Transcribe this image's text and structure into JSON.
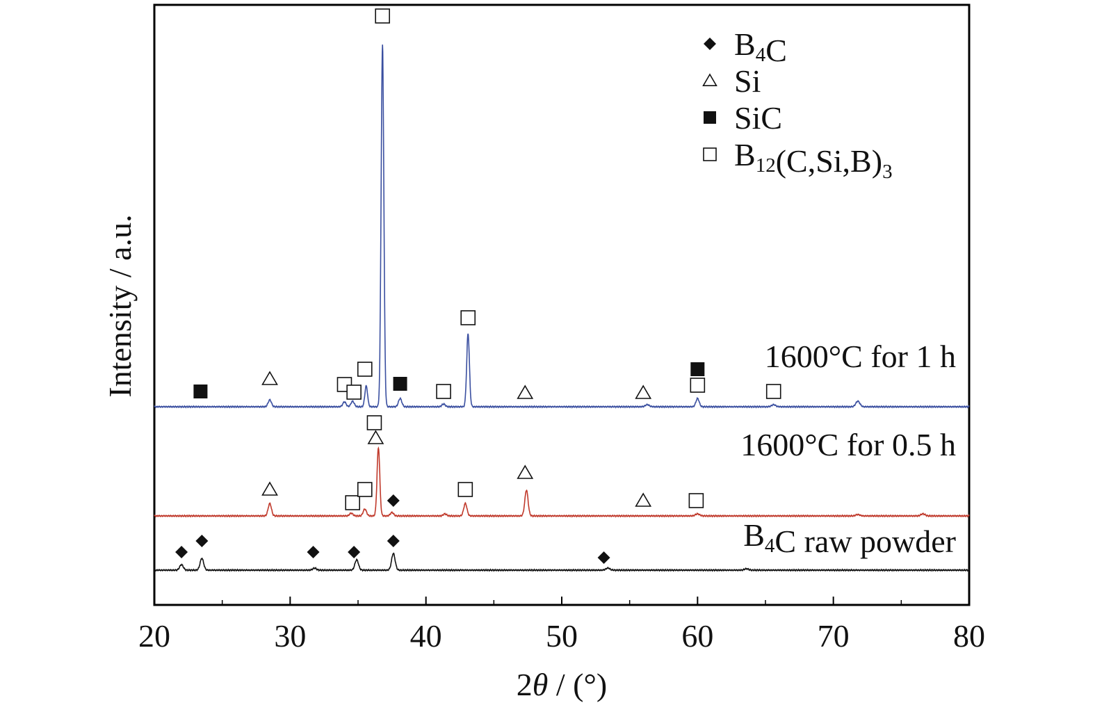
{
  "chart_data": {
    "type": "line",
    "xlabel_prefix": "2",
    "xlabel_var": "θ",
    "xlabel_suffix": " / (°)",
    "ylabel": "Intensity / a.u.",
    "xlim": [
      20,
      80
    ],
    "x_ticks": [
      "20",
      "30",
      "40",
      "50",
      "60",
      "70",
      "80"
    ],
    "y_ticks": [],
    "grid": false,
    "legend": {
      "placement": "top-right",
      "entries": [
        {
          "symbol": "diamond-filled",
          "name": "B₄C",
          "parts": [
            {
              "t": "B"
            },
            {
              "t": "4",
              "sub": true
            },
            {
              "t": "C"
            }
          ]
        },
        {
          "symbol": "triangle-open",
          "name": "Si",
          "parts": [
            {
              "t": "Si"
            }
          ]
        },
        {
          "symbol": "square-filled",
          "name": "SiC",
          "parts": [
            {
              "t": "SiC"
            }
          ]
        },
        {
          "symbol": "square-open",
          "name": "B₁₂(C,Si,B)₃",
          "parts": [
            {
              "t": "B"
            },
            {
              "t": "12",
              "sub": true
            },
            {
              "t": "(C,Si,B)"
            },
            {
              "t": "3",
              "sub": true
            }
          ]
        }
      ]
    },
    "series": [
      {
        "name": "1600°C for 1 h",
        "label_parts": [
          {
            "t": "1600°C for 1 h"
          }
        ],
        "color": "#3a4fa0",
        "offset": 235,
        "peaks": [
          {
            "x": 28.5,
            "h": 10,
            "w": 0.12
          },
          {
            "x": 34.0,
            "h": 7,
            "w": 0.12
          },
          {
            "x": 34.6,
            "h": 8,
            "w": 0.12
          },
          {
            "x": 35.6,
            "h": 30,
            "w": 0.1
          },
          {
            "x": 36.8,
            "h": 520,
            "w": 0.1
          },
          {
            "x": 38.1,
            "h": 12,
            "w": 0.12
          },
          {
            "x": 41.3,
            "h": 4,
            "w": 0.12
          },
          {
            "x": 43.1,
            "h": 105,
            "w": 0.1
          },
          {
            "x": 56.3,
            "h": 3,
            "w": 0.15
          },
          {
            "x": 60.0,
            "h": 12,
            "w": 0.12
          },
          {
            "x": 65.6,
            "h": 3,
            "w": 0.15
          },
          {
            "x": 71.8,
            "h": 8,
            "w": 0.15
          }
        ],
        "markers": [
          {
            "x": 23.4,
            "symbol": "square-filled",
            "h": 22
          },
          {
            "x": 28.5,
            "symbol": "triangle-open",
            "h": 40
          },
          {
            "x": 34.0,
            "symbol": "square-open",
            "h": 32
          },
          {
            "x": 34.7,
            "symbol": "square-open",
            "h": 21
          },
          {
            "x": 35.5,
            "symbol": "square-open",
            "h": 54
          },
          {
            "x": 36.8,
            "symbol": "square-open",
            "h": 562
          },
          {
            "x": 38.1,
            "symbol": "square-filled",
            "h": 33
          },
          {
            "x": 41.3,
            "symbol": "square-open",
            "h": 22
          },
          {
            "x": 43.1,
            "symbol": "square-open",
            "h": 128
          },
          {
            "x": 47.3,
            "symbol": "triangle-open",
            "h": 20
          },
          {
            "x": 56.0,
            "symbol": "triangle-open",
            "h": 20
          },
          {
            "x": 60.0,
            "symbol": "square-open",
            "h": 31
          },
          {
            "x": 60.0,
            "symbol": "square-filled",
            "h": 54
          },
          {
            "x": 65.6,
            "symbol": "square-open",
            "h": 22
          }
        ]
      },
      {
        "name": "1600°C for 0.5 h",
        "label_parts": [
          {
            "t": "1600°C for 0.5 h"
          }
        ],
        "color": "#c0392b",
        "offset": 78,
        "peaks": [
          {
            "x": 28.5,
            "h": 18,
            "w": 0.12
          },
          {
            "x": 34.5,
            "h": 4,
            "w": 0.12
          },
          {
            "x": 35.5,
            "h": 10,
            "w": 0.12
          },
          {
            "x": 36.5,
            "h": 98,
            "w": 0.1
          },
          {
            "x": 37.5,
            "h": 5,
            "w": 0.12
          },
          {
            "x": 41.4,
            "h": 3,
            "w": 0.12
          },
          {
            "x": 42.9,
            "h": 18,
            "w": 0.12
          },
          {
            "x": 47.4,
            "h": 37,
            "w": 0.12
          },
          {
            "x": 60.0,
            "h": 3,
            "w": 0.15
          },
          {
            "x": 71.8,
            "h": 2,
            "w": 0.15
          },
          {
            "x": 76.6,
            "h": 3,
            "w": 0.15
          }
        ],
        "markers": [
          {
            "x": 28.5,
            "symbol": "triangle-open",
            "h": 38
          },
          {
            "x": 34.6,
            "symbol": "square-open",
            "h": 19
          },
          {
            "x": 35.5,
            "symbol": "square-open",
            "h": 38
          },
          {
            "x": 36.2,
            "symbol": "square-open",
            "h": 134
          },
          {
            "x": 36.3,
            "symbol": "triangle-open",
            "h": 112
          },
          {
            "x": 37.6,
            "symbol": "diamond-filled",
            "h": 22
          },
          {
            "x": 42.9,
            "symbol": "square-open",
            "h": 38
          },
          {
            "x": 47.3,
            "symbol": "triangle-open",
            "h": 62
          },
          {
            "x": 56.0,
            "symbol": "triangle-open",
            "h": 22
          },
          {
            "x": 59.9,
            "symbol": "square-open",
            "h": 22
          }
        ]
      },
      {
        "name": "B₄C raw powder",
        "label_parts": [
          {
            "t": "B"
          },
          {
            "t": "4",
            "sub": true
          },
          {
            "t": "C raw powder"
          }
        ],
        "color": "#111111",
        "offset": 0,
        "peaks": [
          {
            "x": 22.0,
            "h": 8,
            "w": 0.13
          },
          {
            "x": 23.5,
            "h": 17,
            "w": 0.13
          },
          {
            "x": 31.8,
            "h": 3,
            "w": 0.13
          },
          {
            "x": 34.9,
            "h": 15,
            "w": 0.13
          },
          {
            "x": 37.6,
            "h": 24,
            "w": 0.13
          },
          {
            "x": 53.4,
            "h": 3,
            "w": 0.15
          },
          {
            "x": 63.6,
            "h": 2,
            "w": 0.15
          }
        ],
        "markers": [
          {
            "x": 22.0,
            "symbol": "diamond-filled",
            "h": 26
          },
          {
            "x": 23.5,
            "symbol": "diamond-filled",
            "h": 42
          },
          {
            "x": 31.7,
            "symbol": "diamond-filled",
            "h": 26
          },
          {
            "x": 34.7,
            "symbol": "diamond-filled",
            "h": 26
          },
          {
            "x": 37.6,
            "symbol": "diamond-filled",
            "h": 42
          },
          {
            "x": 53.1,
            "symbol": "diamond-filled",
            "h": 18
          }
        ]
      }
    ]
  }
}
